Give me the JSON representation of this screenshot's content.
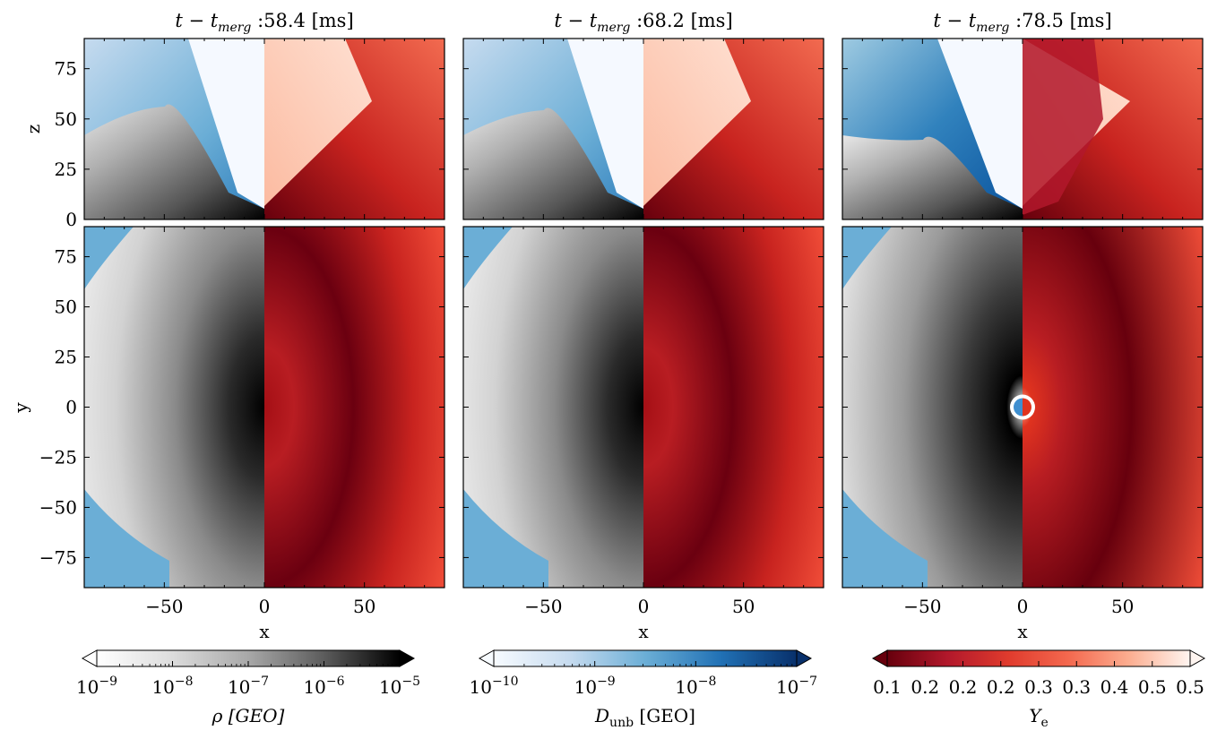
{
  "panels": [
    {
      "title": "t − t",
      "title_sub": "merg",
      "title_rest": " :58.4 [ms]"
    },
    {
      "title": "t − t",
      "title_sub": "merg",
      "title_rest": " :68.2 [ms]"
    },
    {
      "title": "t − t",
      "title_sub": "merg",
      "title_rest": " :78.5 [ms]"
    }
  ],
  "colorbars": [
    {
      "label": "ρ [GEO]",
      "label_main": "ρ [GEO]",
      "label_sub": "",
      "label_rest": "",
      "ticks": [
        {
          "base": "10",
          "exp": "−9"
        },
        {
          "base": "10",
          "exp": "−8"
        },
        {
          "base": "10",
          "exp": "−7"
        },
        {
          "base": "10",
          "exp": "−6"
        },
        {
          "base": "10",
          "exp": "−5"
        }
      ],
      "colors": [
        "#ffffff",
        "#d9d9d9",
        "#a0a0a0",
        "#5a5a5a",
        "#000000"
      ],
      "log": true
    },
    {
      "label": "D unb [GEO]",
      "label_main": "D",
      "label_sub": "unb",
      "label_rest": " [GEO]",
      "ticks": [
        {
          "base": "10",
          "exp": "−10"
        },
        {
          "base": "10",
          "exp": "−9"
        },
        {
          "base": "10",
          "exp": "−8"
        },
        {
          "base": "10",
          "exp": "−7"
        }
      ],
      "colors": [
        "#f7fbff",
        "#c6dbef",
        "#6baed6",
        "#2171b5",
        "#08306b"
      ],
      "log": true
    },
    {
      "label": "Y e",
      "label_main": "Y",
      "label_sub": "e",
      "label_rest": "",
      "ticks": [
        "0.1",
        "0.2",
        "0.2",
        "0.2",
        "0.3",
        "0.3",
        "0.4",
        "0.5",
        "0.5"
      ],
      "colors": [
        "#67000d",
        "#b2182b",
        "#e03b2d",
        "#f4694f",
        "#fcae91",
        "#fff5f0"
      ],
      "log": false
    }
  ],
  "axes": {
    "x_label": "x",
    "y_label_top": "z",
    "y_label_bottom": "y",
    "x_ticks": [
      "−50",
      "0",
      "50"
    ],
    "z_ticks": [
      "0",
      "25",
      "50",
      "75"
    ],
    "y_ticks": [
      "−75",
      "−50",
      "−25",
      "0",
      "25",
      "50",
      "75"
    ]
  },
  "chart_data": {
    "type": "heatmap",
    "description_note": "",
    "x_range": [
      -90,
      90
    ],
    "z_range": [
      0,
      90
    ],
    "y_range": [
      -90,
      90
    ],
    "colors": {
      "density": "gray",
      "unbound": "Blues",
      "ye": "Reds"
    }
  }
}
